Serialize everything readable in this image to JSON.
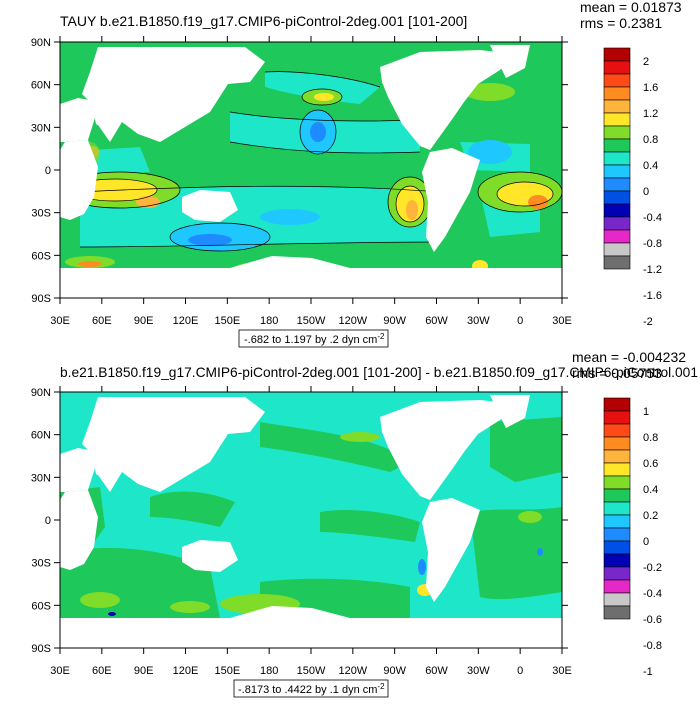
{
  "panels": [
    {
      "title": "TAUY b.e21.B1850.f19_g17.CMIP6-piControl-2deg.001 [101-200]",
      "stats": {
        "mean": "mean = 0.01873",
        "rms": "rms = 0.2381"
      },
      "lat_ticks": [
        "90N",
        "60N",
        "30N",
        "0",
        "30S",
        "60S",
        "90S"
      ],
      "lon_ticks": [
        "30E",
        "60E",
        "90E",
        "120E",
        "150E",
        "180",
        "150W",
        "120W",
        "90W",
        "60W",
        "30W",
        "0",
        "30E"
      ],
      "info": "-.682 to 1.197 by .2 dyn cm",
      "info_sup": "-2",
      "colorbar": {
        "labels": [
          "2",
          "1.6",
          "1.2",
          "0.8",
          "0.4",
          "0",
          "-0.4",
          "-0.8",
          "-1.2",
          "-1.6",
          "-2"
        ],
        "colors": [
          "#b40000",
          "#e61010",
          "#ff4a18",
          "#ff8c20",
          "#ffb43c",
          "#ffe628",
          "#7fdc28",
          "#1ec85a",
          "#1ee6c8",
          "#1ec8ff",
          "#1e8cff",
          "#0050e6",
          "#0000b4",
          "#7828c8",
          "#e628c8",
          "#c8c8c8",
          "#6e6e6e"
        ]
      }
    },
    {
      "title": "b.e21.B1850.f19_g17.CMIP6-piControl-2deg.001 [101-200] - b.e21.B1850.f09_g17.CMIP6-piControl.001",
      "stats": {
        "mean": "mean = -0.004232",
        "rms": "rms = 0.05753"
      },
      "lat_ticks": [
        "90N",
        "60N",
        "30N",
        "0",
        "30S",
        "60S",
        "90S"
      ],
      "lon_ticks": [
        "30E",
        "60E",
        "90E",
        "120E",
        "150E",
        "180",
        "150W",
        "120W",
        "90W",
        "60W",
        "30W",
        "0",
        "30E"
      ],
      "info": "-.8173 to .4422 by .1 dyn cm",
      "info_sup": "-2",
      "colorbar": {
        "labels": [
          "1",
          "0.8",
          "0.6",
          "0.4",
          "0.2",
          "0",
          "-0.2",
          "-0.4",
          "-0.6",
          "-0.8",
          "-1"
        ],
        "colors": [
          "#b40000",
          "#e61010",
          "#ff4a18",
          "#ff8c20",
          "#ffb43c",
          "#ffe628",
          "#7fdc28",
          "#1ec85a",
          "#1ee6c8",
          "#1ec8ff",
          "#1e8cff",
          "#0050e6",
          "#0000b4",
          "#7828c8",
          "#e628c8",
          "#c8c8c8",
          "#6e6e6e"
        ]
      }
    }
  ]
}
